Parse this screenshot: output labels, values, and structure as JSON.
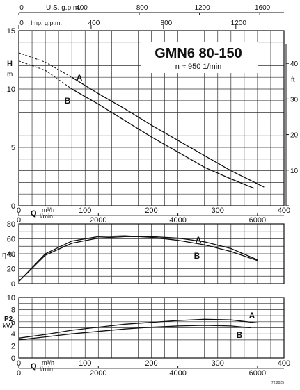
{
  "header": {
    "title": "GMN6 80-150",
    "subtitle": "n ≈ 950 1/min",
    "ref": "72.2025"
  },
  "chart_data": [
    {
      "id": "head",
      "type": "line",
      "ylabel": "H",
      "ylabel_unit": "m",
      "right_label": "ft",
      "xlim": [
        0,
        400
      ],
      "ylim": [
        0,
        15
      ],
      "yticks": [
        0,
        5,
        10,
        15
      ],
      "right_ticks": [
        10,
        20,
        30,
        40
      ],
      "top_axis_usgpm": {
        "label": "U.S. g.p.m.",
        "ticks": [
          0,
          400,
          800,
          1200,
          1600
        ]
      },
      "top_axis_impgpm": {
        "label": "Imp. g.p.m.",
        "ticks": [
          0,
          400,
          800,
          1200
        ]
      },
      "series": [
        {
          "name": "A",
          "x": [
            0,
            40,
            80,
            120,
            160,
            200,
            240,
            280,
            320,
            370
          ],
          "y": [
            13.1,
            12.3,
            11.0,
            9.6,
            8.3,
            6.9,
            5.6,
            4.3,
            3.0,
            1.6
          ]
        },
        {
          "name": "B",
          "x": [
            0,
            40,
            80,
            120,
            160,
            200,
            240,
            280,
            320,
            355
          ],
          "y": [
            12.4,
            11.6,
            10.0,
            8.7,
            7.3,
            5.9,
            4.6,
            3.3,
            2.3,
            1.5
          ]
        }
      ]
    },
    {
      "id": "efficiency",
      "type": "line",
      "ylabel": "η %",
      "xlim": [
        0,
        400
      ],
      "ylim": [
        0,
        80
      ],
      "yticks": [
        0,
        20,
        40,
        60,
        80
      ],
      "series": [
        {
          "name": "A",
          "x": [
            0,
            40,
            80,
            120,
            160,
            200,
            240,
            280,
            320,
            360
          ],
          "y": [
            3,
            38,
            54,
            61,
            63,
            63,
            61,
            56,
            47,
            32
          ]
        },
        {
          "name": "B",
          "x": [
            0,
            40,
            80,
            120,
            160,
            200,
            240,
            280,
            320,
            360
          ],
          "y": [
            3,
            40,
            57,
            63,
            64,
            62,
            58,
            52,
            43,
            31
          ]
        }
      ]
    },
    {
      "id": "power",
      "type": "line",
      "ylabel": "P2",
      "ylabel_unit": "kW",
      "xlabel": "Q",
      "x_unit_primary": "m³/h",
      "x_unit_secondary": "l/min",
      "xlim": [
        0,
        400
      ],
      "ylim": [
        0,
        10
      ],
      "yticks": [
        0,
        2,
        4,
        6,
        8,
        10
      ],
      "xticks": [
        0,
        100,
        200,
        300,
        400
      ],
      "lmin_ticks": [
        0,
        2000,
        4000,
        6000
      ],
      "series": [
        {
          "name": "A",
          "x": [
            0,
            40,
            80,
            120,
            160,
            200,
            240,
            280,
            320,
            360
          ],
          "y": [
            3.3,
            3.9,
            4.6,
            5.1,
            5.6,
            5.9,
            6.2,
            6.4,
            6.3,
            5.8
          ]
        },
        {
          "name": "B",
          "x": [
            0,
            40,
            80,
            120,
            160,
            200,
            240,
            280,
            320,
            350
          ],
          "y": [
            3.0,
            3.5,
            4.0,
            4.4,
            4.8,
            5.1,
            5.3,
            5.4,
            5.3,
            5.0
          ]
        }
      ]
    }
  ],
  "mid_axis": {
    "xlabel": "Q",
    "x_unit_primary": "m³/h",
    "x_unit_secondary": "l/min",
    "xticks": [
      0,
      100,
      200,
      300,
      400
    ],
    "lmin_ticks": [
      0,
      2000,
      4000,
      6000
    ]
  }
}
